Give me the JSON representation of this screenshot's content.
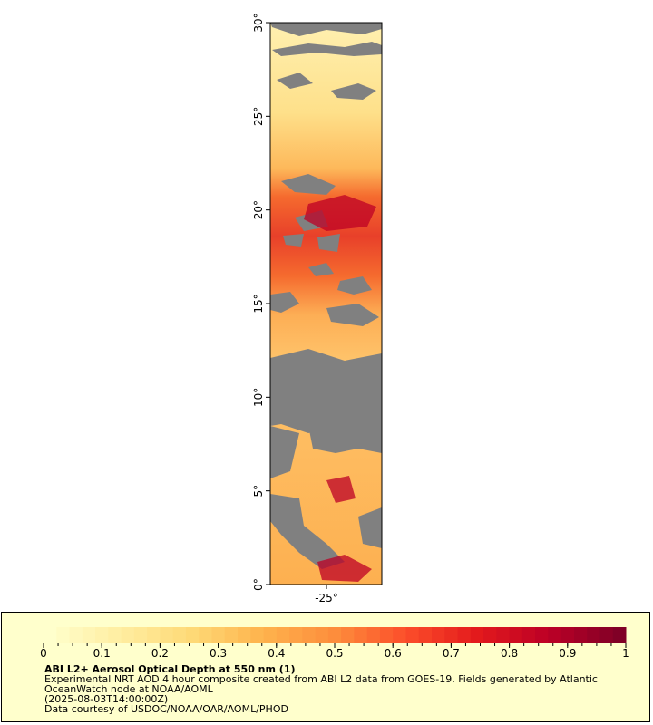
{
  "map": {
    "y_axis": {
      "range": [
        0,
        30
      ],
      "ticks": [
        {
          "value": 0,
          "label": "0°"
        },
        {
          "value": 5,
          "label": "5°"
        },
        {
          "value": 10,
          "label": "10°"
        },
        {
          "value": 15,
          "label": "15°"
        },
        {
          "value": 20,
          "label": "20°"
        },
        {
          "value": 25,
          "label": "25°"
        },
        {
          "value": 30,
          "label": "30°"
        }
      ]
    },
    "x_axis": {
      "ticks": [
        {
          "value": -25,
          "label": "-25°"
        }
      ]
    },
    "no_data_color": "#808080",
    "colors": [
      "#ffffcc",
      "#ffeda0",
      "#fed976",
      "#feb24c",
      "#fd8d3c",
      "#fc4e2a",
      "#e31a1c",
      "#bd0026",
      "#800026"
    ]
  },
  "legend": {
    "colorbar_range": [
      0,
      1
    ],
    "ticks": [
      {
        "value": 0,
        "label": "0"
      },
      {
        "value": 0.1,
        "label": "0.1"
      },
      {
        "value": 0.2,
        "label": "0.2"
      },
      {
        "value": 0.3,
        "label": "0.3"
      },
      {
        "value": 0.4,
        "label": "0.4"
      },
      {
        "value": 0.5,
        "label": "0.5"
      },
      {
        "value": 0.6,
        "label": "0.6"
      },
      {
        "value": 0.7,
        "label": "0.7"
      },
      {
        "value": 0.8,
        "label": "0.8"
      },
      {
        "value": 0.9,
        "label": "0.9"
      },
      {
        "value": 1,
        "label": "1"
      }
    ],
    "title": "ABI L2+ Aerosol Optical Depth at 550 nm (1)",
    "line1": "Experimental NRT AOD 4 hour composite created from ABI L2 data from GOES-19. Fields generated by Atlantic",
    "line2": "OceanWatch node at NOAA/AOML",
    "line3": "(2025-08-03T14:00:00Z)",
    "line4": "Data courtesy of USDOC/NOAA/OAR/AOML/PHOD"
  }
}
